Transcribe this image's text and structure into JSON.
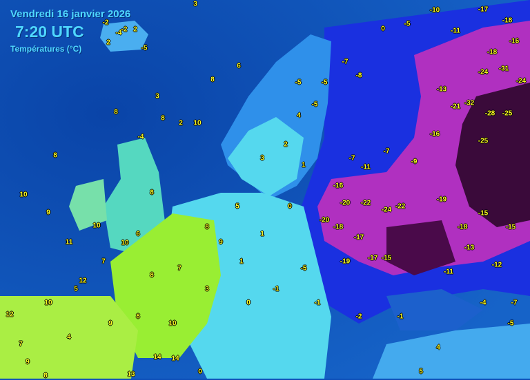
{
  "header": {
    "date": "Vendredi 16 janvier 2026",
    "time": "7:20 UTC",
    "variable": "Températures (°C)"
  },
  "colors": {
    "ocean": "#0d4fb8",
    "mild": "#99ee33",
    "cool": "#55d8ee",
    "cold": "#1a33dd",
    "very_cold": "#b030c0",
    "extreme": "#3a0a3a",
    "label": "#ffff22"
  },
  "temperatures": [
    3,
    6,
    8,
    3,
    8,
    2,
    10,
    8,
    -4,
    8,
    10,
    9,
    11,
    12,
    12,
    9,
    8,
    13,
    14,
    14,
    0,
    10,
    10,
    8,
    8,
    9,
    5,
    3,
    2,
    1,
    4,
    -5,
    -5,
    -5,
    -7,
    -8,
    0,
    -5,
    -10,
    -11,
    -17,
    -18,
    -16,
    -18,
    -24,
    -31,
    -24,
    -13,
    -21,
    -32,
    -28,
    -25,
    -25,
    -16,
    -9,
    -7,
    -7,
    -11,
    -16,
    -20,
    -22,
    -24,
    -22,
    -20,
    -18,
    -17,
    -19,
    -17,
    -15,
    -19,
    -18,
    -15,
    -15,
    -13,
    -12,
    -11,
    -4,
    -7,
    -5,
    5,
    4,
    -1,
    -2,
    -1,
    -1,
    0,
    3,
    10,
    8,
    9,
    4,
    10,
    7,
    -5,
    0,
    1,
    1,
    7,
    8,
    6,
    7,
    5,
    -2,
    -2,
    2,
    2,
    -5,
    -4,
    -2,
    3,
    2
  ]
}
